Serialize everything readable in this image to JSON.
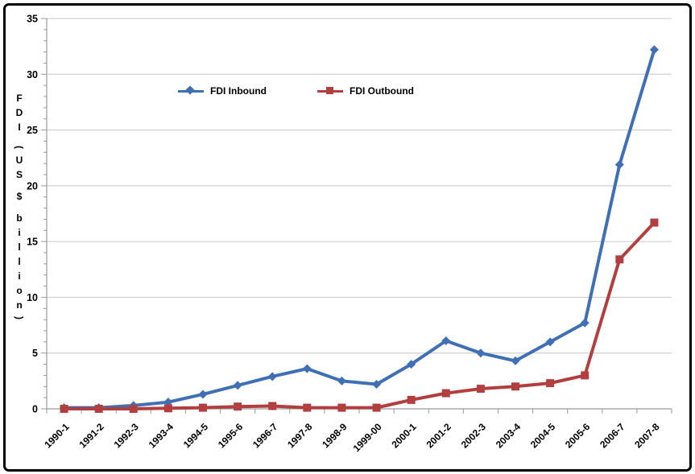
{
  "chart": {
    "background_color": "#ffffff",
    "frame_color": "#000000",
    "gridline_color": "#c6c6c6",
    "axis_color": "#9b9b9b",
    "text_color": "#000000"
  },
  "chart_data": {
    "type": "line",
    "title": "",
    "xlabel": "",
    "ylabel": "FDI (US $ billion)",
    "ylim": [
      0,
      35
    ],
    "yticks": [
      0,
      5,
      10,
      15,
      20,
      25,
      30,
      35
    ],
    "grid": true,
    "legend_position": "top-center",
    "categories": [
      "1990-1",
      "1991-2",
      "1992-3",
      "1993-4",
      "1994-5",
      "1995-6",
      "1996-7",
      "1997-8",
      "1998-9",
      "1999-00",
      "2000-1",
      "2001-2",
      "2002-3",
      "2003-4",
      "2004-5",
      "2005-6",
      "2006-7",
      "2007-8"
    ],
    "series": [
      {
        "name": "FDI Inbound",
        "color": "#3f6fb5",
        "marker": "diamond",
        "values": [
          0.1,
          0.1,
          0.3,
          0.6,
          1.3,
          2.1,
          2.9,
          3.6,
          2.5,
          2.2,
          4.0,
          6.1,
          5.0,
          4.3,
          6.0,
          7.7,
          21.9,
          32.2
        ]
      },
      {
        "name": "FDI Outbound",
        "color": "#b23f3f",
        "marker": "square",
        "values": [
          0.0,
          0.0,
          0.0,
          0.05,
          0.1,
          0.2,
          0.25,
          0.1,
          0.1,
          0.1,
          0.8,
          1.4,
          1.8,
          2.0,
          2.3,
          3.0,
          13.4,
          16.7
        ]
      }
    ]
  }
}
